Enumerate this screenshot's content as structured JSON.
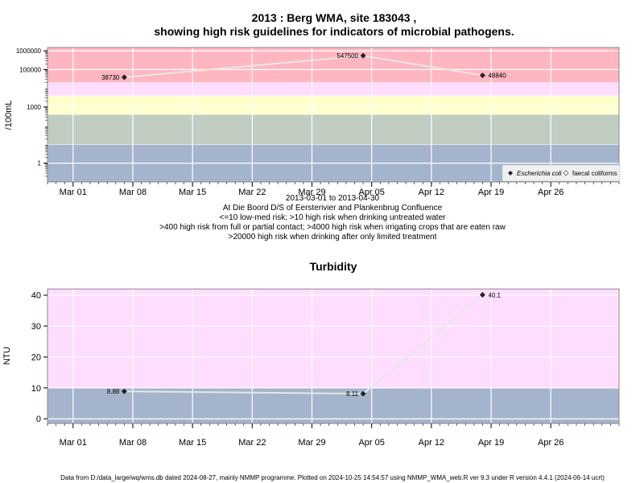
{
  "title_line1": "2013 : Berg WMA, site 183043 ,",
  "title_line2": "showing high risk guidelines for indicators of microbial pathogens.",
  "subtitle_lines": [
    "2013-03-01 to 2013-04-30",
    "At Die Boord D/S of Eersterivier and Plankenbrug Confluence",
    "<=10 low-med risk; >10 high risk when drinking untreated water",
    ">400 high risk from full or partial contact; >4000 high risk when irrigating crops that are eaten raw",
    ">20000 high risk when drinking after only limited treatment"
  ],
  "footer": "Data from D:/data_large/wq/wms.db dated 2024-08-27, mainly NMMP programme. Plotted on 2024-10-25 14:54:57 using NMMP_WMA_web.R ver 9.3 under R version 4.4.1 (2024-06-14 ucrt)",
  "colors": {
    "high_risk_band": "#ffb6c1",
    "pink_band": "#ffddff",
    "yellow_band": "#ffffcc",
    "green_band": "#c2cdc2",
    "blue_band": "#a4b4cc",
    "gridline": "#ffffff",
    "series_line": "#dddddd",
    "point": "#222222"
  },
  "chart_data": [
    {
      "type": "scatter",
      "title": "",
      "ylabel": "/100mL",
      "xlabel": "",
      "y_scale": "log",
      "ylim": [
        0.1,
        1500000
      ],
      "xlim": [
        "2013-02-26",
        "2013-05-04"
      ],
      "x_ticks": [
        "2013-03-01",
        "2013-03-08",
        "2013-03-15",
        "2013-03-22",
        "2013-03-29",
        "2013-04-05",
        "2013-04-12",
        "2013-04-19",
        "2013-04-26"
      ],
      "x_tick_labels": [
        "Mar 01",
        "Mar 08",
        "Mar 15",
        "Mar 22",
        "Mar 29",
        "Apr 05",
        "Apr 12",
        "Apr 19",
        "Apr 26"
      ],
      "y_ticks": [
        1,
        1000,
        100000,
        1000000
      ],
      "y_tick_labels": [
        "1",
        "1000",
        "100000",
        "1000000"
      ],
      "bands": [
        {
          "from": 0.1,
          "to": 10,
          "color": "#a4b4cc"
        },
        {
          "from": 10,
          "to": 400,
          "color": "#c2cdc2"
        },
        {
          "from": 400,
          "to": 4000,
          "color": "#ffffcc"
        },
        {
          "from": 4000,
          "to": 20000,
          "color": "#ffddff"
        },
        {
          "from": 20000,
          "to": 1500000,
          "color": "#ffb6c1"
        }
      ],
      "series": [
        {
          "name": "Escherichia coli",
          "x": [
            "2013-03-07",
            "2013-04-04",
            "2013-04-18"
          ],
          "y": [
            38730,
            547500,
            48840
          ],
          "labels": [
            "38730",
            "547500",
            "48840"
          ],
          "label_side": [
            "left",
            "left",
            "right"
          ]
        }
      ],
      "legend": {
        "position": "bottom-right",
        "entries": [
          "Escherichia coli",
          "faecal coliforms"
        ]
      }
    },
    {
      "type": "scatter",
      "title": "Turbidity",
      "ylabel": "NTU",
      "xlabel": "",
      "ylim": [
        -1.5,
        42
      ],
      "xlim": [
        "2013-02-26",
        "2013-05-04"
      ],
      "x_ticks": [
        "2013-03-01",
        "2013-03-08",
        "2013-03-15",
        "2013-03-22",
        "2013-03-29",
        "2013-04-05",
        "2013-04-12",
        "2013-04-19",
        "2013-04-26"
      ],
      "x_tick_labels": [
        "Mar 01",
        "Mar 08",
        "Mar 15",
        "Mar 22",
        "Mar 29",
        "Apr 05",
        "Apr 12",
        "Apr 19",
        "Apr 26"
      ],
      "y_ticks": [
        0,
        10,
        20,
        30,
        40
      ],
      "y_tick_labels": [
        "0",
        "10",
        "20",
        "30",
        "40"
      ],
      "bands": [
        {
          "from": -1.5,
          "to": 10,
          "color": "#a4b4cc"
        },
        {
          "from": 10,
          "to": 42,
          "color": "#ffddff"
        }
      ],
      "series": [
        {
          "name": "Turbidity",
          "x": [
            "2013-03-07",
            "2013-04-04",
            "2013-04-18"
          ],
          "y": [
            8.88,
            8.11,
            40.1
          ],
          "labels": [
            "8.88",
            "8.11",
            "40.1"
          ],
          "label_side": [
            "left",
            "left",
            "right"
          ]
        }
      ]
    }
  ]
}
